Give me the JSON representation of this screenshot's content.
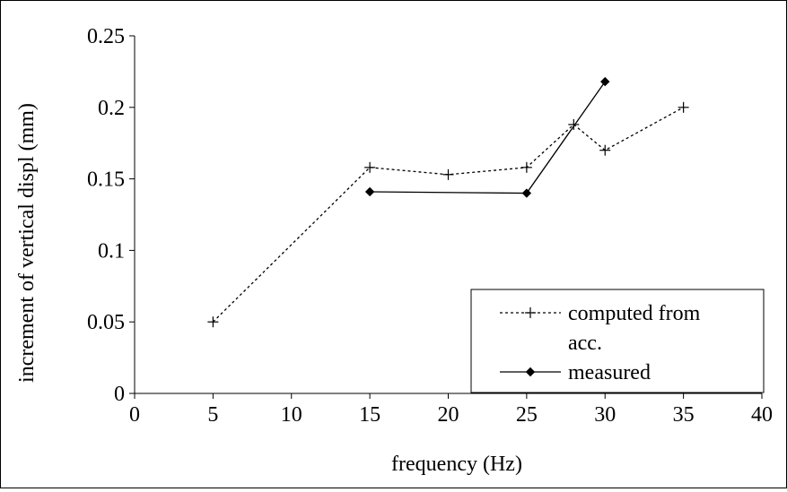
{
  "chart_data": {
    "type": "line",
    "title": "",
    "xlabel": "frequency (Hz)",
    "ylabel": "increment of vertical displ (mm)",
    "xlim": [
      0,
      40
    ],
    "ylim": [
      0,
      0.25
    ],
    "x_ticks": [
      "0",
      "5",
      "10",
      "15",
      "20",
      "25",
      "30",
      "35",
      "40"
    ],
    "y_ticks": [
      "0",
      "0.05",
      "0.1",
      "0.15",
      "0.2",
      "0.25"
    ],
    "grid": false,
    "legend_position": "bottom-right",
    "series": [
      {
        "name": "computed from acc.",
        "name_lines": [
          "computed from",
          "acc."
        ],
        "line_style": "dotted",
        "marker": "plus",
        "color": "#000000",
        "x": [
          5,
          15,
          20,
          25,
          28,
          30,
          35
        ],
        "y": [
          0.05,
          0.158,
          0.153,
          0.158,
          0.188,
          0.17,
          0.2
        ]
      },
      {
        "name": "measured",
        "name_lines": [
          "measured"
        ],
        "line_style": "solid",
        "marker": "diamond",
        "color": "#000000",
        "x": [
          15,
          25,
          30
        ],
        "y": [
          0.141,
          0.14,
          0.218
        ]
      }
    ]
  }
}
